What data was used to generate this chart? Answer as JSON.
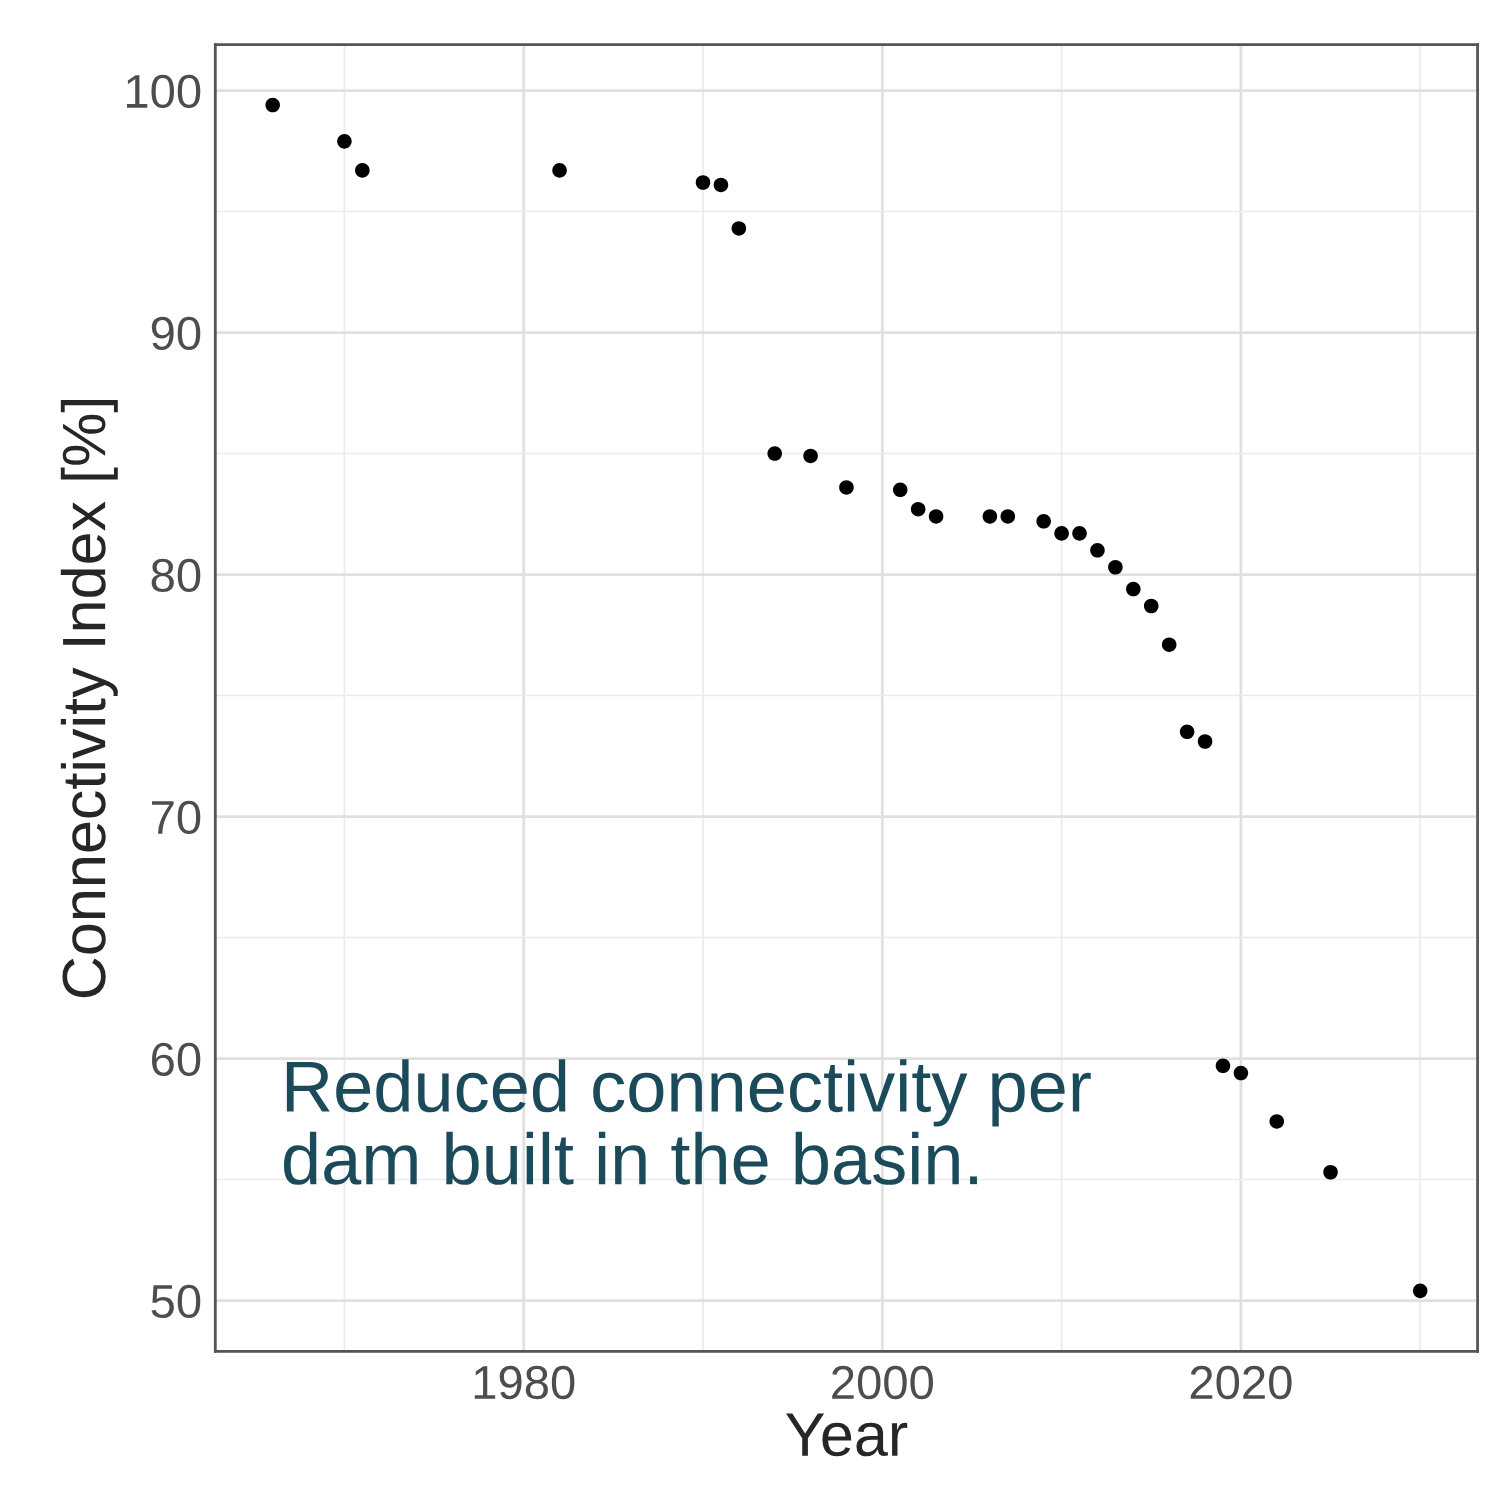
{
  "chart_data": {
    "type": "scatter",
    "xlabel": "Year",
    "ylabel": "Connectivity Index [%]",
    "x": [
      1966,
      1970,
      1971,
      1982,
      1990,
      1991,
      1992,
      1994,
      1996,
      1998,
      2001,
      2002,
      2003,
      2006,
      2007,
      2009,
      2010,
      2011,
      2012,
      2013,
      2014,
      2015,
      2016,
      2017,
      2018,
      2019,
      2020,
      2022,
      2025,
      2030
    ],
    "series": [
      {
        "color": "#000000",
        "values": [
          99.4,
          97.9,
          96.7,
          96.7,
          96.2,
          96.1,
          94.3,
          85.0,
          84.9,
          83.6,
          83.5,
          82.7,
          82.4,
          82.4,
          82.4,
          82.2,
          81.7,
          81.7,
          81.0,
          80.3,
          79.4,
          78.7,
          77.1,
          73.5,
          73.1,
          59.7,
          59.4,
          57.4,
          55.3,
          50.4
        ]
      }
    ],
    "xlim": [
      1962.8,
      2033.2
    ],
    "ylim": [
      47.9,
      101.9
    ],
    "xticks": [
      1980,
      2000,
      2020
    ],
    "yticks": [
      50,
      60,
      70,
      80,
      90,
      100
    ],
    "grid": true,
    "marker": "circle",
    "annotations": [
      "Reduced connectivity per\ndam built in the basin."
    ]
  }
}
